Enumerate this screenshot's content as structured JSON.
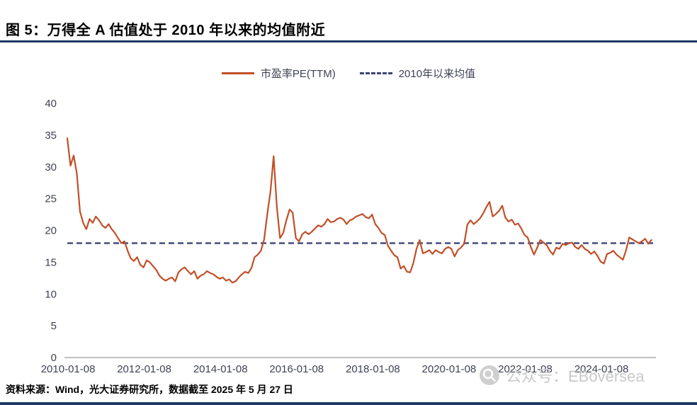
{
  "header": {
    "title": "图 5：万得全 A 估值处于 2010 年以来的均值附近"
  },
  "footer": {
    "source": "资料来源：Wind，光大证券研究所，数据截至 2025 年 5 月 27 日"
  },
  "watermark": {
    "text": "公众号：EBoversea"
  },
  "colors": {
    "pe_line": "#C14F28",
    "mean_line": "#3D4478",
    "rule_navy": "#1F3864",
    "axis_text": "#3F4254",
    "axis_line": "#9A9A9A",
    "watermark": "#C9C9C9"
  },
  "chart_data": {
    "type": "line",
    "title": "图 5：万得全 A 估值处于 2010 年以来的均值附近",
    "ylim": [
      0,
      40
    ],
    "yticks": [
      0,
      5,
      10,
      15,
      20,
      25,
      30,
      35,
      40
    ],
    "xtick_labels": [
      "2010-01-08",
      "2012-01-08",
      "2014-01-08",
      "2016-01-08",
      "2018-01-08",
      "2020-01-08",
      "2022-01-08",
      "2024-01-08"
    ],
    "grid": false,
    "legend_position": "top-center",
    "legend": [
      {
        "label": "市盈率PE(TTM)",
        "series": "pe_ttm",
        "style": "solid"
      },
      {
        "label": "2010年以来均值",
        "series": "mean",
        "style": "dashed"
      }
    ],
    "series": {
      "pe_ttm": {
        "name": "市盈率PE(TTM)",
        "sampling": "monthly",
        "start": "2010-01",
        "end": "2025-05",
        "values": [
          34.5,
          30.2,
          31.8,
          29.0,
          23.0,
          21.2,
          20.2,
          21.8,
          21.2,
          22.2,
          21.6,
          20.8,
          20.4,
          21.0,
          20.2,
          19.6,
          18.8,
          18.0,
          18.3,
          16.8,
          15.6,
          15.2,
          15.8,
          14.6,
          14.2,
          15.3,
          15.0,
          14.4,
          13.8,
          12.9,
          12.4,
          12.1,
          12.4,
          12.6,
          12.0,
          13.4,
          13.9,
          14.2,
          13.6,
          13.1,
          13.6,
          12.4,
          12.9,
          13.1,
          13.6,
          13.3,
          13.1,
          12.7,
          12.4,
          12.6,
          12.1,
          12.3,
          11.8,
          12.0,
          12.6,
          13.1,
          13.5,
          13.3,
          14.1,
          15.8,
          16.2,
          16.8,
          18.6,
          22.6,
          26.2,
          31.7,
          23.8,
          18.8,
          19.6,
          21.6,
          23.3,
          22.8,
          18.8,
          18.3,
          19.4,
          19.8,
          19.4,
          19.8,
          20.3,
          20.8,
          20.6,
          21.0,
          21.8,
          21.3,
          21.4,
          21.8,
          22.0,
          21.7,
          21.0,
          21.6,
          21.8,
          22.2,
          22.4,
          22.6,
          22.1,
          21.9,
          22.5,
          21.0,
          20.4,
          19.6,
          19.3,
          17.6,
          16.8,
          16.1,
          15.8,
          14.0,
          14.4,
          13.5,
          13.4,
          14.9,
          17.1,
          18.5,
          16.4,
          16.6,
          16.9,
          16.3,
          16.9,
          16.6,
          16.4,
          17.1,
          17.4,
          17.1,
          15.9,
          16.9,
          17.3,
          17.9,
          20.9,
          21.6,
          21.0,
          21.4,
          21.9,
          22.7,
          23.7,
          24.5,
          22.2,
          22.6,
          23.1,
          23.9,
          22.0,
          21.4,
          21.7,
          20.9,
          21.1,
          20.3,
          19.3,
          18.9,
          17.4,
          16.2,
          17.3,
          18.5,
          18.1,
          17.7,
          16.8,
          16.2,
          17.3,
          17.1,
          17.9,
          17.7,
          18.0,
          18.1,
          17.4,
          17.1,
          17.7,
          17.1,
          16.8,
          16.3,
          16.7,
          16.0,
          15.1,
          14.8,
          16.3,
          16.5,
          16.8,
          16.2,
          15.8,
          15.4,
          16.9,
          18.9,
          18.6,
          18.3,
          18.0,
          18.3,
          18.7,
          17.9,
          18.5
        ]
      },
      "mean": {
        "name": "2010年以来均值",
        "value": 18
      }
    }
  }
}
